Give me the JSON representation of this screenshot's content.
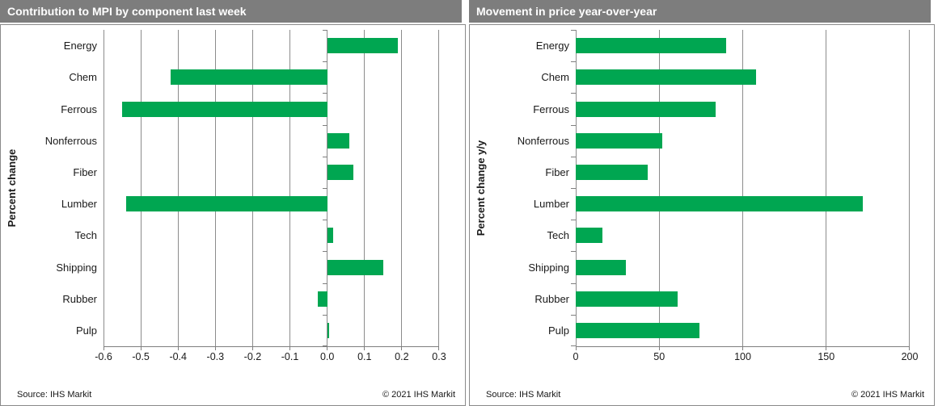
{
  "panels": [
    {
      "title": "Contribution to MPI by component last week",
      "ylabel": "Percent change",
      "source": "Source: IHS Markit",
      "copyright": "© 2021  IHS Markit"
    },
    {
      "title": "Movement in price year-over-year",
      "ylabel": "Percent change y/y",
      "source": "Source: IHS Markit",
      "copyright": "© 2021  IHS Markit"
    }
  ],
  "chart_data": [
    {
      "type": "bar",
      "orientation": "horizontal",
      "title": "Contribution to MPI by component last week",
      "categories": [
        "Energy",
        "Chem",
        "Ferrous",
        "Nonferrous",
        "Fiber",
        "Lumber",
        "Tech",
        "Shipping",
        "Rubber",
        "Pulp"
      ],
      "values": [
        0.19,
        -0.42,
        -0.55,
        0.06,
        0.07,
        -0.54,
        0.015,
        0.15,
        -0.025,
        0.005
      ],
      "xlabel": "",
      "ylabel": "Percent change",
      "xlim": [
        -0.6,
        0.3
      ],
      "xticks": [
        -0.6,
        -0.5,
        -0.4,
        -0.3,
        -0.2,
        -0.1,
        0.0,
        0.1,
        0.2,
        0.3
      ],
      "xtick_labels": [
        "-0.6",
        "-0.5",
        "-0.4",
        "-0.3",
        "-0.2",
        "-0.1",
        "0.0",
        "0.1",
        "0.2",
        "0.3"
      ],
      "grid": true,
      "legend": false,
      "bar_color": "#00a651"
    },
    {
      "type": "bar",
      "orientation": "horizontal",
      "title": "Movement in price year-over-year",
      "categories": [
        "Energy",
        "Chem",
        "Ferrous",
        "Nonferrous",
        "Fiber",
        "Lumber",
        "Tech",
        "Shipping",
        "Rubber",
        "Pulp"
      ],
      "values": [
        90,
        108,
        84,
        52,
        43,
        172,
        16,
        30,
        61,
        74
      ],
      "xlabel": "",
      "ylabel": "Percent change y/y",
      "xlim": [
        0,
        200
      ],
      "xticks": [
        0,
        50,
        100,
        150,
        200
      ],
      "xtick_labels": [
        "0",
        "50",
        "100",
        "150",
        "200"
      ],
      "grid": true,
      "legend": false,
      "bar_color": "#00a651"
    }
  ],
  "colors": {
    "bar_green": "#00a651",
    "title_bar_gray": "#7d7d7d",
    "gridline_gray": "#8c8c8c",
    "axis_gray": "#7f7f7f"
  }
}
